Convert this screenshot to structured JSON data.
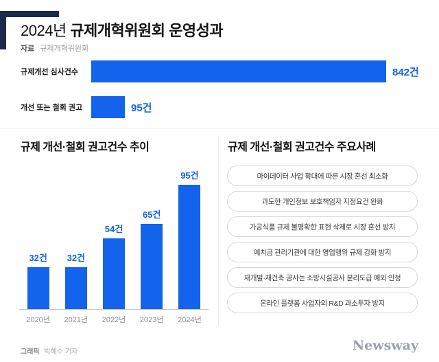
{
  "colors": {
    "accent": "#1363ec",
    "navy": "#1b2a4a",
    "divider": "#ececec",
    "pill_border": "#d8d8d8",
    "value_text": "#1363ec"
  },
  "header": {
    "title_year": "2024년",
    "title_main": "규제개혁위원회 운영성과",
    "source_label": "자료",
    "source_value": "규제개혁위원회"
  },
  "chart_data": [
    {
      "type": "bar",
      "orientation": "horizontal",
      "categories": [
        "규제개선 심사건수",
        "개선 또는 철회 권고"
      ],
      "values": [
        842,
        95
      ],
      "value_labels": [
        "842건",
        "95건"
      ],
      "xlim": [
        0,
        842
      ],
      "legend": "none",
      "grid": false
    },
    {
      "type": "bar",
      "orientation": "vertical",
      "title": "규제 개선·철회 권고건수 추이",
      "categories": [
        "2020년",
        "2021년",
        "2022년",
        "2023년",
        "2024년"
      ],
      "values": [
        32,
        32,
        54,
        65,
        95
      ],
      "value_labels": [
        "32건",
        "32건",
        "54건",
        "65건",
        "95건"
      ],
      "ylim": [
        0,
        100
      ],
      "legend": "none",
      "grid": false
    }
  ],
  "cases": {
    "title": "규제 개선·철회 권고건수 주요사례",
    "items": [
      "마이데이터 사업 확대에 따른 시장 혼선 최소화",
      "과도한 개인정보 보호책임자 지정요건 완화",
      "가공식품 규제 불명확한 표현 삭제로 시장 혼선 방지",
      "예치금 관리기관에 대한 영업행위 규제 강화 방지",
      "재개발·재건축 공사는 소방시설공사 분리도급 예외 인정",
      "온라인 플랫폼 사업자의 R&D 과소투자 방지"
    ]
  },
  "footer": {
    "credit_label": "그래픽",
    "credit_value": "박혜수 기자",
    "logo": "Newsway"
  }
}
